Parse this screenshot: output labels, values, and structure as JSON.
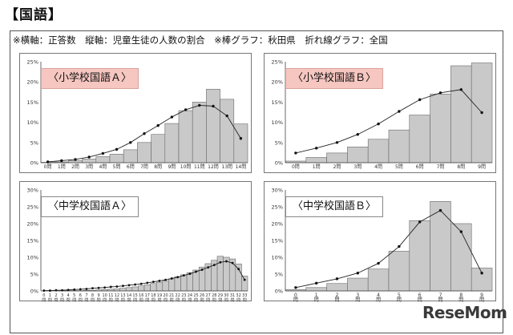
{
  "page": {
    "section_title": "【国語】",
    "note": "※横軸：正答数　縦軸：児童生徒の人数の割合　※棒グラフ：秋田県　折れ線グラフ：全国",
    "watermark": "ReseMom"
  },
  "chart_data": [
    {
      "type": "bar",
      "title": "〈小学校国語Ａ〉",
      "title_style": "highlight",
      "categories": [
        "0問",
        "1問",
        "2問",
        "3問",
        "4問",
        "5問",
        "6問",
        "7問",
        "8問",
        "9問",
        "10問",
        "11問",
        "12問",
        "13問",
        "14問"
      ],
      "ylim": [
        0,
        25
      ],
      "yticks": [
        "0%",
        "5%",
        "10%",
        "15%",
        "20%",
        "25%"
      ],
      "series": [
        {
          "kind": "bar",
          "values": [
            0.1,
            0.2,
            0.5,
            0.9,
            1.5,
            2.1,
            3.2,
            5.0,
            7.0,
            9.7,
            12.9,
            15.0,
            18.2,
            15.7,
            9.6
          ]
        },
        {
          "kind": "line",
          "values": [
            0.2,
            0.5,
            0.8,
            1.4,
            2.3,
            3.3,
            5.0,
            7.2,
            9.2,
            11.3,
            13.1,
            14.2,
            14.0,
            11.6,
            6.0
          ]
        }
      ],
      "grid": false
    },
    {
      "type": "bar",
      "title": "〈小学校国語Ｂ〉",
      "title_style": "highlight",
      "categories": [
        "0問",
        "1問",
        "2問",
        "3問",
        "4問",
        "5問",
        "6問",
        "7問",
        "8問",
        "9問"
      ],
      "ylim": [
        0,
        25
      ],
      "yticks": [
        "0%",
        "5%",
        "10%",
        "15%",
        "20%",
        "25%"
      ],
      "series": [
        {
          "kind": "bar",
          "values": [
            0.4,
            1.3,
            2.4,
            3.9,
            5.8,
            8.1,
            11.8,
            17.0,
            24.0,
            24.7
          ]
        },
        {
          "kind": "line",
          "values": [
            2.4,
            3.6,
            5.0,
            7.0,
            9.6,
            12.7,
            15.6,
            17.3,
            18.1,
            12.4
          ]
        }
      ],
      "grid": false
    },
    {
      "type": "bar",
      "title": "〈中学校国語Ａ〉",
      "title_style": "plain",
      "categories": [
        "0",
        "1",
        "2",
        "3",
        "4",
        "5",
        "6",
        "7",
        "8",
        "9",
        "10",
        "11",
        "12",
        "13",
        "14",
        "15",
        "16",
        "17",
        "18",
        "19",
        "20",
        "21",
        "22",
        "23",
        "24",
        "25",
        "26",
        "27",
        "28",
        "29",
        "30",
        "31",
        "32",
        "33"
      ],
      "category_suffix": "問",
      "ylim": [
        0,
        30
      ],
      "yticks": [
        "0%",
        "5%",
        "10%",
        "15%",
        "20%",
        "25%",
        "30%"
      ],
      "series": [
        {
          "kind": "bar",
          "values": [
            0.0,
            0.0,
            0.0,
            0.1,
            0.1,
            0.1,
            0.1,
            0.2,
            0.2,
            0.3,
            0.4,
            0.5,
            0.6,
            0.8,
            1.0,
            1.2,
            1.5,
            1.8,
            2.2,
            2.6,
            3.0,
            3.6,
            4.2,
            4.8,
            5.4,
            6.2,
            7.1,
            8.1,
            9.1,
            10.3,
            10.0,
            9.5,
            8.0,
            4.4
          ]
        },
        {
          "kind": "line",
          "values": [
            0.1,
            0.1,
            0.2,
            0.2,
            0.3,
            0.4,
            0.5,
            0.6,
            0.8,
            0.9,
            1.0,
            1.2,
            1.3,
            1.5,
            1.7,
            1.9,
            2.1,
            2.4,
            2.7,
            3.0,
            3.3,
            3.7,
            4.1,
            4.6,
            5.1,
            5.7,
            6.3,
            7.0,
            7.7,
            8.5,
            8.8,
            8.3,
            6.5,
            3.3
          ]
        }
      ],
      "grid": false
    },
    {
      "type": "bar",
      "title": "〈中学校国語Ｂ〉",
      "title_style": "plain",
      "categories": [
        "0",
        "1",
        "2",
        "3",
        "4",
        "5",
        "6",
        "7",
        "8",
        "9"
      ],
      "category_suffix": "問",
      "ylim": [
        0,
        30
      ],
      "yticks": [
        "0%",
        "5%",
        "10%",
        "15%",
        "20%",
        "25%",
        "30%"
      ],
      "series": [
        {
          "kind": "bar",
          "values": [
            0.4,
            1.0,
            2.2,
            3.8,
            6.5,
            11.8,
            20.9,
            26.6,
            20.0,
            6.8
          ]
        },
        {
          "kind": "line",
          "values": [
            1.0,
            2.3,
            3.6,
            5.3,
            8.2,
            13.2,
            20.5,
            23.9,
            17.6,
            5.3
          ]
        }
      ],
      "grid": false
    }
  ]
}
